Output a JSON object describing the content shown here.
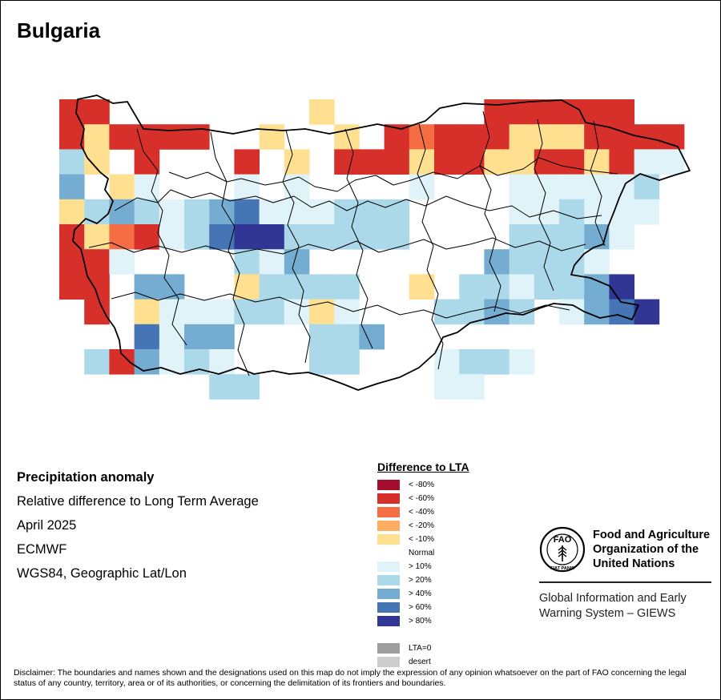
{
  "map": {
    "title": "Bulgaria",
    "colors": {
      "boundary": "#000000",
      "background": "#ffffff"
    },
    "anomaly_grid": {
      "lon_range": [
        22.35,
        28.6
      ],
      "lat_range": [
        41.2,
        44.25
      ],
      "cell_deg": 0.25,
      "columns": 25,
      "rows": 12,
      "first_row_latitude": "north",
      "cell_codes": [
        [
          "n4",
          "n4",
          "x",
          "x",
          "x",
          "x",
          "x",
          "x",
          "x",
          "x",
          "n1",
          "x",
          "x",
          "x",
          "x",
          "x",
          "x",
          "n4",
          "n4",
          "n4",
          "n4",
          "n4",
          "n4",
          "x",
          "x"
        ],
        [
          "n4",
          "n1",
          "n4",
          "n4",
          "n4",
          "n4",
          "x",
          "x",
          "n1",
          "x",
          "x",
          "n1",
          "x",
          "n4",
          "n3",
          "n4",
          "n4",
          "n4",
          "n1",
          "n1",
          "n1",
          "n4",
          "n4",
          "n4",
          "n4"
        ],
        [
          "p2",
          "n1",
          "x",
          "n4",
          "x",
          "x",
          "x",
          "n4",
          "x",
          "n1",
          "x",
          "n4",
          "n4",
          "n4",
          "n1",
          "n4",
          "n4",
          "n1",
          "n1",
          "n4",
          "n4",
          "n1",
          "n4",
          "p1",
          "p1"
        ],
        [
          "p3",
          "x",
          "n1",
          "p1",
          "x",
          "x",
          "x",
          "p1",
          "x",
          "p1",
          "x",
          "x",
          "x",
          "x",
          "p1",
          "x",
          "x",
          "x",
          "p1",
          "p1",
          "p1",
          "p1",
          "p1",
          "p2",
          "x"
        ],
        [
          "n1",
          "p2",
          "p3",
          "p2",
          "p1",
          "p2",
          "p3",
          "p4",
          "p1",
          "p1",
          "p1",
          "p2",
          "p2",
          "p2",
          "x",
          "x",
          "x",
          "x",
          "p1",
          "p1",
          "p2",
          "p1",
          "p1",
          "p1",
          "x"
        ],
        [
          "n4",
          "n1",
          "n3",
          "n4",
          "p1",
          "p2",
          "p4",
          "p5",
          "p5",
          "p2",
          "p2",
          "p2",
          "p2",
          "p2",
          "x",
          "x",
          "x",
          "x",
          "p2",
          "p2",
          "p2",
          "p3",
          "p1",
          "x",
          "x"
        ],
        [
          "n4",
          "n4",
          "p1",
          "x",
          "x",
          "x",
          "x",
          "p2",
          "p1",
          "p3",
          "x",
          "x",
          "x",
          "x",
          "x",
          "x",
          "x",
          "p3",
          "p2",
          "p2",
          "p2",
          "p1",
          "x",
          "x",
          "x"
        ],
        [
          "n4",
          "n4",
          "x",
          "p3",
          "p3",
          "x",
          "x",
          "n1",
          "p2",
          "p2",
          "p2",
          "p2",
          "x",
          "x",
          "n1",
          "x",
          "p2",
          "p2",
          "p1",
          "p2",
          "p2",
          "p3",
          "p5",
          "x",
          "x"
        ],
        [
          "x",
          "n4",
          "x",
          "n1",
          "p1",
          "p1",
          "p1",
          "p2",
          "p2",
          "p1",
          "n1",
          "p1",
          "x",
          "x",
          "x",
          "p2",
          "p2",
          "p3",
          "p2",
          "x",
          "p1",
          "p3",
          "p4",
          "p5",
          "x"
        ],
        [
          "x",
          "x",
          "x",
          "p4",
          "p1",
          "p3",
          "p3",
          "x",
          "x",
          "x",
          "p2",
          "p2",
          "p3",
          "x",
          "x",
          "x",
          "x",
          "x",
          "x",
          "x",
          "x",
          "x",
          "x",
          "x",
          "x"
        ],
        [
          "x",
          "p2",
          "n4",
          "p3",
          "p1",
          "p2",
          "p1",
          "x",
          "x",
          "x",
          "p2",
          "p2",
          "x",
          "x",
          "x",
          "p1",
          "p2",
          "p2",
          "p1",
          "x",
          "x",
          "x",
          "x",
          "x",
          "x"
        ],
        [
          "x",
          "x",
          "x",
          "x",
          "x",
          "x",
          "p2",
          "p2",
          "x",
          "x",
          "x",
          "x",
          "x",
          "x",
          "x",
          "p1",
          "p1",
          "x",
          "x",
          "x",
          "x",
          "x",
          "x",
          "x",
          "x"
        ]
      ]
    }
  },
  "info": {
    "heading": "Precipitation anomaly",
    "subtitle": "Relative difference to Long Term Average",
    "date": "April 2025",
    "source": "ECMWF",
    "projection": "WGS84, Geographic Lat/Lon"
  },
  "legend": {
    "title": "Difference to LTA",
    "dry": [
      {
        "label": "< -80%",
        "color": "#a50f2d"
      },
      {
        "label": "< -60%",
        "color": "#d7302a"
      },
      {
        "label": "< -40%",
        "color": "#f46d43"
      },
      {
        "label": "< -20%",
        "color": "#fdae61"
      },
      {
        "label": "< -10%",
        "color": "#fee090"
      }
    ],
    "normal_label": "Normal",
    "wet": [
      {
        "label": "> 10%",
        "color": "#e0f3f8"
      },
      {
        "label": "> 20%",
        "color": "#abd9e9"
      },
      {
        "label": "> 40%",
        "color": "#74add1"
      },
      {
        "label": "> 60%",
        "color": "#4575b4"
      },
      {
        "label": "> 80%",
        "color": "#313695"
      }
    ],
    "extra": [
      {
        "label": "LTA=0",
        "color": "#9e9e9e"
      },
      {
        "label": "desert",
        "color": "#cdcdcd"
      }
    ]
  },
  "logo": {
    "emblem_letters": "FAO",
    "motto": "FIAT PANIS",
    "org_name_line1": "Food and Agriculture",
    "org_name_line2": "Organization of the",
    "org_name_line3": "United Nations",
    "system_line1": "Global Information and Early",
    "system_line2": "Warning System – GIEWS"
  },
  "disclaimer": "Disclaimer: The boundaries and names shown and the designations used on this map do not imply the expression of any opinion whatsoever on the part of FAO concerning the legal status of any country, territory, area or of its authorities, or concerning the delimitation of its frontiers and boundaries."
}
